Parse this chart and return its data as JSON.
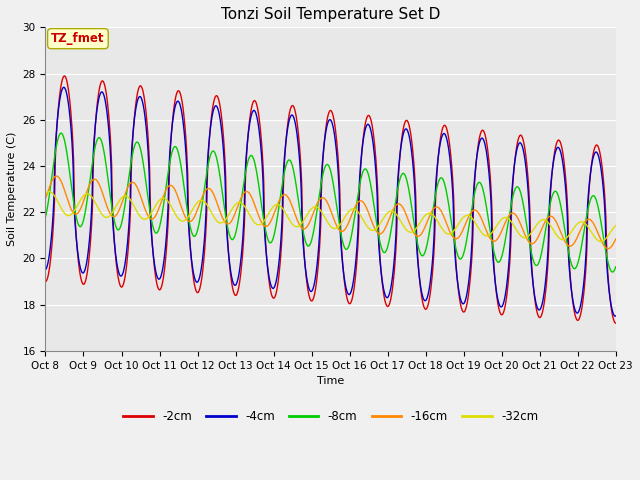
{
  "title": "Tonzi Soil Temperature Set D",
  "xlabel": "Time",
  "ylabel": "Soil Temperature (C)",
  "annotation": "TZ_fmet",
  "annotation_bg": "#ffffcc",
  "annotation_border": "#aaaa00",
  "annotation_text_color": "#cc0000",
  "ylim": [
    16,
    30
  ],
  "yticks": [
    16,
    18,
    20,
    22,
    24,
    26,
    28,
    30
  ],
  "x_labels": [
    "Oct 8",
    "Oct 9",
    "Oct 10",
    "Oct 11",
    "Oct 12",
    "Oct 13",
    "Oct 14",
    "Oct 15",
    "Oct 16",
    "Oct 17",
    "Oct 18",
    "Oct 19",
    "Oct 20",
    "Oct 21",
    "Oct 22",
    "Oct 23"
  ],
  "series_colors": [
    "#dd0000",
    "#0000cc",
    "#00cc00",
    "#ff8800",
    "#dddd00"
  ],
  "series_labels": [
    "-2cm",
    "-4cm",
    "-8cm",
    "-16cm",
    "-32cm"
  ],
  "bg_color": "#e8e8e8",
  "grid_color": "#ffffff",
  "num_days": 15,
  "points_per_day": 96,
  "figwidth": 6.4,
  "figheight": 4.8,
  "dpi": 100
}
